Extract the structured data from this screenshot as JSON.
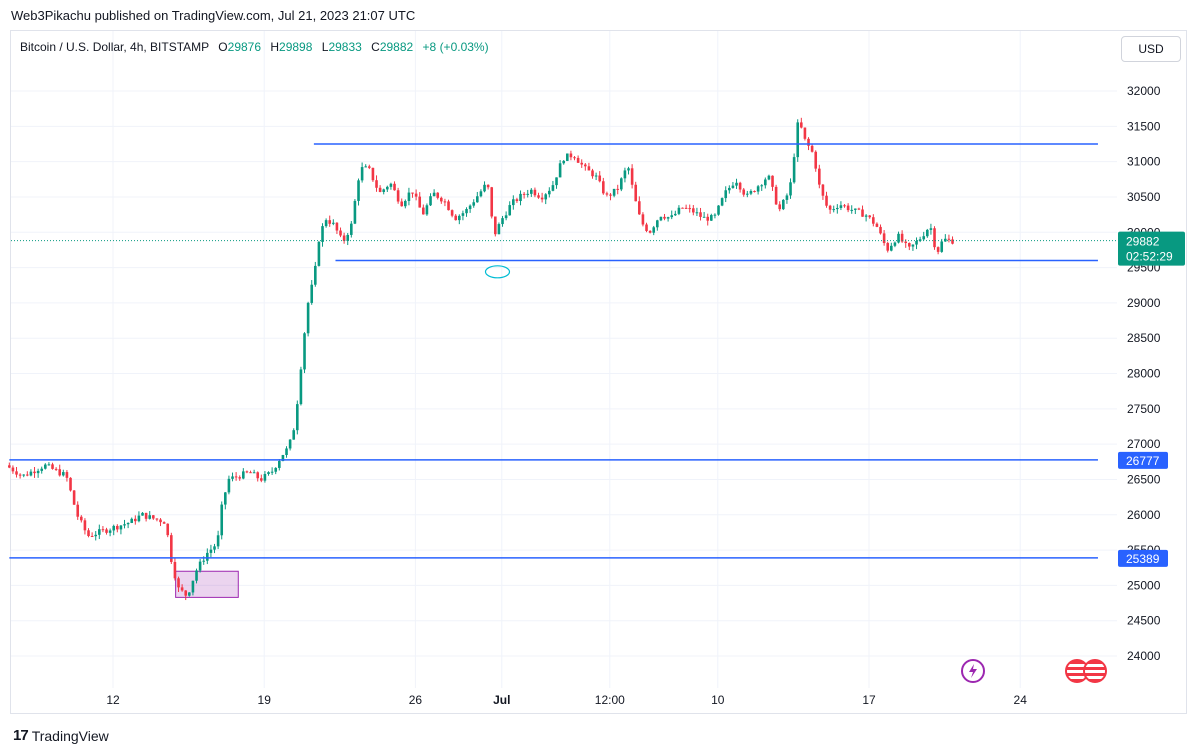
{
  "header": {
    "published": "Web3Pikachu published on TradingView.com, Jul 21, 2023 21:07 UTC"
  },
  "legend": {
    "symbol": "Bitcoin / U.S. Dollar, 4h, BITSTAMP",
    "open_label": "O",
    "open": "29876",
    "high_label": "H",
    "high": "29898",
    "low_label": "L",
    "low": "29833",
    "close_label": "C",
    "close": "29882",
    "change": "+8 (+0.03%)"
  },
  "currency_button": "USD",
  "price_tag": {
    "price": "29882",
    "countdown": "02:52:29"
  },
  "level_tags": [
    "26777",
    "25389"
  ],
  "footer": {
    "brand": "TradingView"
  },
  "colors": {
    "up": "#089981",
    "down": "#f23645",
    "line": "#2962ff",
    "box": "#9c27b0"
  },
  "chart_data": {
    "type": "candlestick",
    "title": "Bitcoin / U.S. Dollar, 4h, BITSTAMP",
    "ylim": [
      23550,
      32550
    ],
    "y_ticks": [
      24000,
      24500,
      25000,
      25500,
      26000,
      26500,
      27000,
      27500,
      28000,
      28500,
      29000,
      29500,
      30000,
      30500,
      31000,
      31500,
      32000
    ],
    "x_ticks": [
      {
        "label": "12",
        "day": 12
      },
      {
        "label": "19",
        "day": 19
      },
      {
        "label": "26",
        "day": 26
      },
      {
        "label": "Jul",
        "day": 30
      },
      {
        "label": "12:00",
        "day": 35
      },
      {
        "label": "10",
        "day": 40
      },
      {
        "label": "17",
        "day": 47
      },
      {
        "label": "24",
        "day": 54
      }
    ],
    "x_range_days": [
      7.2,
      58.5
    ],
    "last_price": 29882,
    "horizontal_levels": [
      {
        "price": 31250,
        "from_day": 21.3,
        "to_day": 57.6
      },
      {
        "price": 29600,
        "from_day": 22.3,
        "to_day": 57.6
      },
      {
        "price": 26777,
        "from_day": 7.2,
        "to_day": 57.6
      },
      {
        "price": 25389,
        "from_day": 7.2,
        "to_day": 57.6
      }
    ],
    "rectangle": {
      "from_day": 14.9,
      "to_day": 17.8,
      "top": 25200,
      "bottom": 24830
    },
    "ellipse_marker": {
      "day": 29.8,
      "price": 29440
    },
    "path": [
      [
        7.2,
        26700
      ],
      [
        8.0,
        26550
      ],
      [
        9.0,
        26700
      ],
      [
        10.0,
        26550
      ],
      [
        10.5,
        26000
      ],
      [
        11.0,
        25700
      ],
      [
        12.0,
        25800
      ],
      [
        13.0,
        25900
      ],
      [
        13.5,
        26000
      ],
      [
        14.0,
        25950
      ],
      [
        14.6,
        25900
      ],
      [
        14.9,
        25300
      ],
      [
        15.2,
        24950
      ],
      [
        15.6,
        24850
      ],
      [
        16.0,
        25200
      ],
      [
        16.5,
        25450
      ],
      [
        17.0,
        25600
      ],
      [
        17.2,
        26100
      ],
      [
        17.5,
        26500
      ],
      [
        18.0,
        26550
      ],
      [
        18.5,
        26600
      ],
      [
        19.0,
        26500
      ],
      [
        19.5,
        26600
      ],
      [
        20.0,
        26850
      ],
      [
        20.3,
        26950
      ],
      [
        20.6,
        27300
      ],
      [
        20.8,
        27900
      ],
      [
        21.0,
        28500
      ],
      [
        21.2,
        29000
      ],
      [
        21.5,
        29400
      ],
      [
        21.7,
        29900
      ],
      [
        22.0,
        30200
      ],
      [
        22.4,
        30100
      ],
      [
        22.8,
        29850
      ],
      [
        23.2,
        30100
      ],
      [
        23.6,
        30900
      ],
      [
        24.0,
        30900
      ],
      [
        24.5,
        30550
      ],
      [
        25.0,
        30700
      ],
      [
        25.5,
        30400
      ],
      [
        26.0,
        30600
      ],
      [
        26.5,
        30250
      ],
      [
        27.0,
        30550
      ],
      [
        27.5,
        30450
      ],
      [
        28.0,
        30200
      ],
      [
        28.5,
        30300
      ],
      [
        29.0,
        30500
      ],
      [
        29.5,
        30700
      ],
      [
        29.8,
        29950
      ],
      [
        30.2,
        30200
      ],
      [
        30.6,
        30400
      ],
      [
        31.0,
        30500
      ],
      [
        31.5,
        30600
      ],
      [
        32.0,
        30500
      ],
      [
        32.5,
        30650
      ],
      [
        33.0,
        31050
      ],
      [
        33.5,
        31100
      ],
      [
        34.0,
        30900
      ],
      [
        34.5,
        30800
      ],
      [
        35.0,
        30500
      ],
      [
        35.5,
        30600
      ],
      [
        36.0,
        30950
      ],
      [
        36.3,
        30500
      ],
      [
        36.6,
        30150
      ],
      [
        37.0,
        30000
      ],
      [
        37.5,
        30250
      ],
      [
        38.0,
        30200
      ],
      [
        38.5,
        30350
      ],
      [
        39.0,
        30300
      ],
      [
        39.5,
        30200
      ],
      [
        40.0,
        30200
      ],
      [
        40.5,
        30550
      ],
      [
        41.0,
        30750
      ],
      [
        41.5,
        30500
      ],
      [
        42.0,
        30650
      ],
      [
        42.5,
        30800
      ],
      [
        43.0,
        30300
      ],
      [
        43.5,
        30600
      ],
      [
        43.9,
        31600
      ],
      [
        44.2,
        31300
      ],
      [
        44.6,
        31100
      ],
      [
        44.9,
        30600
      ],
      [
        45.3,
        30300
      ],
      [
        45.8,
        30400
      ],
      [
        46.5,
        30300
      ],
      [
        47.0,
        30250
      ],
      [
        47.5,
        30100
      ],
      [
        48.0,
        29750
      ],
      [
        48.5,
        29950
      ],
      [
        49.0,
        29750
      ],
      [
        49.5,
        29900
      ],
      [
        50.0,
        30100
      ],
      [
        50.3,
        29700
      ],
      [
        50.6,
        29900
      ],
      [
        51.0,
        29880
      ]
    ]
  }
}
